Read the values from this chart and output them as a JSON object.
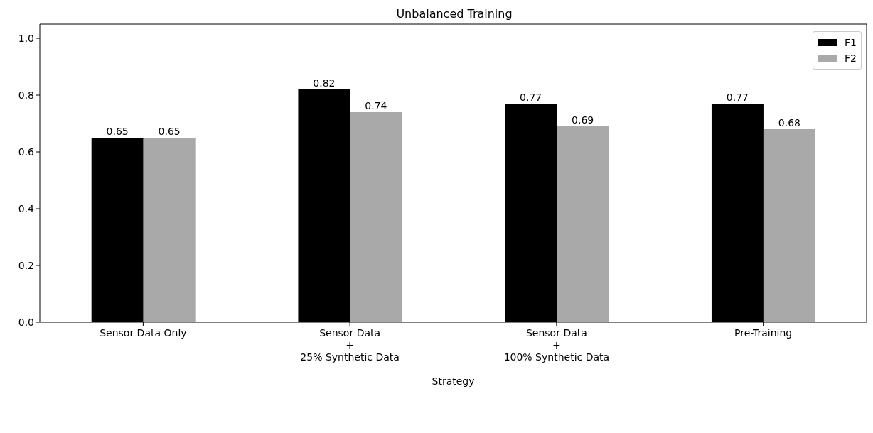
{
  "chart_data": {
    "type": "bar",
    "title": "Unbalanced Training",
    "xlabel": "Strategy",
    "categories": [
      "Sensor Data Only",
      "Sensor Data\n+\n25% Synthetic Data",
      "Sensor Data\n+\n100% Synthetic Data",
      "Pre-Training"
    ],
    "series": [
      {
        "name": "F1",
        "color": "#000000",
        "values": [
          0.65,
          0.82,
          0.77,
          0.77
        ]
      },
      {
        "name": "F2",
        "color": "#a9a9a9",
        "values": [
          0.65,
          0.74,
          0.69,
          0.68
        ]
      }
    ],
    "ylim": [
      0,
      1.05
    ],
    "yticks": [
      {
        "value": 0,
        "label": "0.0"
      },
      {
        "value": 0.2,
        "label": "0.2"
      },
      {
        "value": 0.4,
        "label": "0.4"
      },
      {
        "value": 0.6,
        "label": "0.6"
      },
      {
        "value": 0.8,
        "label": "0.8"
      },
      {
        "value": 1,
        "label": "1.0"
      }
    ],
    "grid": false,
    "legend": "top right",
    "data_labels": true
  }
}
